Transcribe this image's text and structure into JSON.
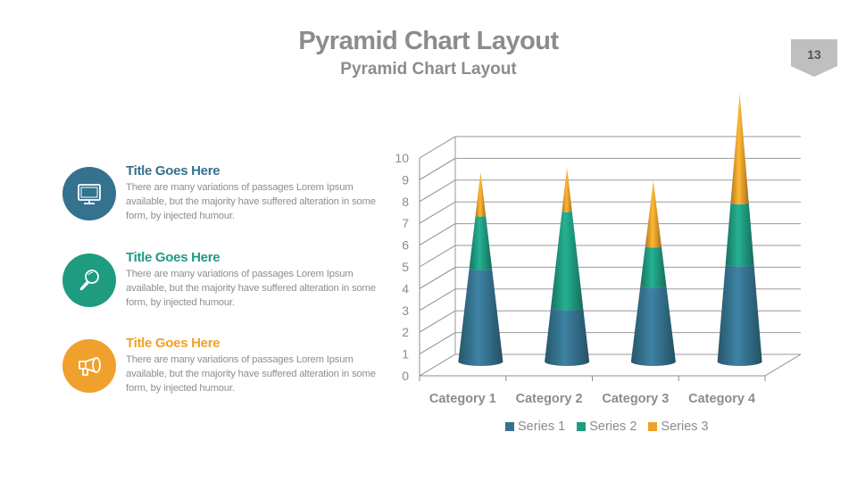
{
  "header": {
    "title": "Pyramid Chart Layout",
    "subtitle": "Pyramid Chart Layout",
    "page_number": "13"
  },
  "colors": {
    "blue": "#35728f",
    "teal": "#1f9b80",
    "orange": "#f0a02c",
    "title_gray": "#8c8c8c",
    "badge_gray": "#bfbfbf"
  },
  "features": [
    {
      "icon": "monitor-icon",
      "title": "Title Goes Here",
      "color": "#35728f",
      "description": "There are many variations of passages Lorem Ipsum available, but the majority have suffered alteration in some form, by injected humour."
    },
    {
      "icon": "magnifier-icon",
      "title": "Title Goes Here",
      "color": "#1f9b80",
      "description": "There are many variations of passages Lorem Ipsum available, but the majority have suffered alteration in some form, by injected humour."
    },
    {
      "icon": "megaphone-icon",
      "title": "Title Goes Here",
      "color": "#f0a02c",
      "description": "There are many variations of passages Lorem Ipsum available, but the majority have suffered alteration in some form, by injected humour."
    }
  ],
  "chart_data": {
    "type": "bar",
    "subtype": "3d-stacked-pyramid",
    "title": "",
    "xlabel": "",
    "ylabel": "",
    "categories": [
      "Category 1",
      "Category 2",
      "Category 3",
      "Category 4"
    ],
    "series": [
      {
        "name": "Series 1",
        "color": "#35728f",
        "values": [
          4.3,
          2.5,
          3.5,
          4.5
        ]
      },
      {
        "name": "Series 2",
        "color": "#1f9b80",
        "values": [
          2.4,
          4.4,
          1.8,
          2.8
        ]
      },
      {
        "name": "Series 3",
        "color": "#f0a02c",
        "values": [
          2,
          2,
          3,
          5
        ]
      }
    ],
    "yticks": [
      0,
      1,
      2,
      3,
      4,
      5,
      6,
      7,
      8,
      9,
      10
    ],
    "ylim": [
      0,
      10
    ],
    "grid": true,
    "legend_position": "bottom"
  }
}
